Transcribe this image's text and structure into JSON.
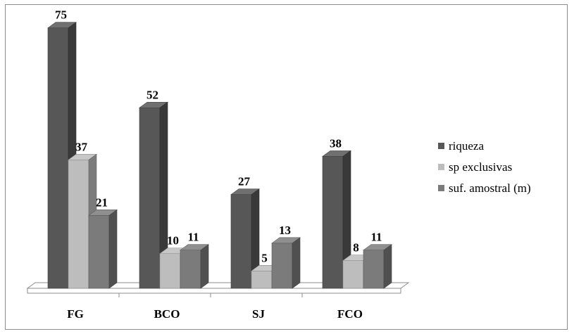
{
  "chart_data": {
    "type": "bar",
    "style": "3d-clustered-column",
    "categories": [
      "FG",
      "BCO",
      "SJ",
      "FCO"
    ],
    "series": [
      {
        "name": "riqueza",
        "values": [
          75,
          52,
          27,
          38
        ],
        "color": "#575757"
      },
      {
        "name": "sp exclusivas",
        "values": [
          37,
          10,
          5,
          8
        ],
        "color": "#bdbdbd"
      },
      {
        "name": "suf. amostral (m)",
        "values": [
          21,
          11,
          13,
          11
        ],
        "color": "#7b7b7b"
      }
    ],
    "title": "",
    "xlabel": "",
    "ylabel": "",
    "ylim": [
      0,
      80
    ],
    "grid": false,
    "legend_position": "right",
    "data_labels": true
  }
}
